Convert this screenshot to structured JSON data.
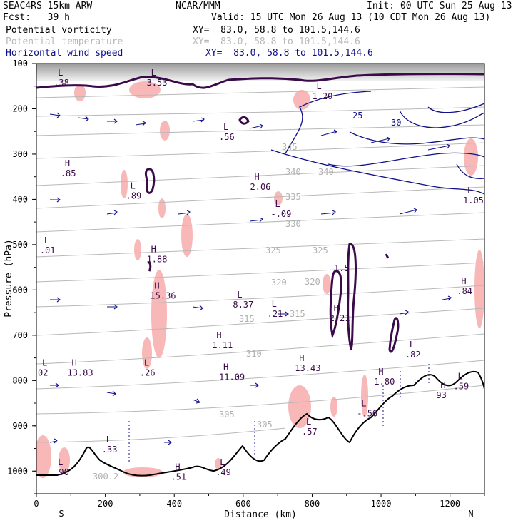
{
  "header": {
    "run_name": "SEAC4RS 15km ARW",
    "forecast": "Fcst:   39 h",
    "org": "NCAR/MMM",
    "init": "Init: 00 UTC Sun 25 Aug 13",
    "valid": "Valid: 15 UTC Mon 26 Aug 13 (10 CDT Mon 26 Aug 13)"
  },
  "legend": [
    {
      "label": "Potential vorticity",
      "xy": "XY=  83.0, 58.8 to 101.5,144.6",
      "color": "#3a0a4a"
    },
    {
      "label": "Potential temperature",
      "xy": "XY=  83.0, 58.8 to 101.5,144.6",
      "color": "#b8b8b8"
    },
    {
      "label": "Horizontal wind speed",
      "xy": "XY=  83.0, 58.8 to 101.5,144.6",
      "color": "#10108a"
    }
  ],
  "chart_data": {
    "type": "line",
    "xlabel": "Distance (km)",
    "ylabel": "Pressure (hPa)",
    "xlim": [
      0,
      1300
    ],
    "ylim": [
      1050,
      100
    ],
    "x_ticks": [
      "0",
      "200",
      "400",
      "600",
      "800",
      "1000",
      "1200"
    ],
    "y_ticks": [
      "100",
      "200",
      "300",
      "400",
      "500",
      "600",
      "700",
      "800",
      "900",
      "1000"
    ],
    "x_end_labels": {
      "left": "S",
      "right": "N"
    },
    "series": [
      {
        "name": "Potential temperature",
        "color": "#b8b8b8",
        "contour_labels": [
          "300.2",
          "305",
          "305",
          "310",
          "315",
          "315",
          "320",
          "320",
          "325",
          "325",
          "330",
          "335",
          "340",
          "340",
          "345"
        ]
      },
      {
        "name": "Potential vorticity",
        "color": "#3a0a4a",
        "contour_labels": [
          "1.5"
        ]
      },
      {
        "name": "Horizontal wind speed",
        "color": "#10108a",
        "contour_labels": [
          "25",
          "30"
        ]
      }
    ],
    "extrema_labels": [
      {
        "kind": "L",
        "value": ".38",
        "x": 50,
        "p": 130
      },
      {
        "kind": "L",
        "value": "3.53",
        "x": 320,
        "p": 130
      },
      {
        "kind": "L",
        "value": "1.20",
        "x": 800,
        "p": 160
      },
      {
        "kind": "L",
        "value": ".56",
        "x": 530,
        "p": 250
      },
      {
        "kind": "H",
        "value": ".85",
        "x": 70,
        "p": 330
      },
      {
        "kind": "L",
        "value": ".89",
        "x": 260,
        "p": 380
      },
      {
        "kind": "H",
        "value": "2.06",
        "x": 620,
        "p": 360
      },
      {
        "kind": "L",
        "value": "-.09",
        "x": 680,
        "p": 420
      },
      {
        "kind": "L",
        "value": "1.05",
        "x": 1260,
        "p": 390
      },
      {
        "kind": "L",
        "value": ".01",
        "x": 10,
        "p": 500
      },
      {
        "kind": "H",
        "value": "1.88",
        "x": 320,
        "p": 520
      },
      {
        "kind": "H",
        "value": "15.36",
        "x": 330,
        "p": 600
      },
      {
        "kind": "L",
        "value": "8.37",
        "x": 570,
        "p": 620
      },
      {
        "kind": "L",
        "value": ".21",
        "x": 670,
        "p": 640
      },
      {
        "kind": "H",
        "value": "2.21",
        "x": 850,
        "p": 650
      },
      {
        "kind": "H",
        "value": ".84",
        "x": 1220,
        "p": 590
      },
      {
        "kind": "H",
        "value": "1.11",
        "x": 510,
        "p": 710
      },
      {
        "kind": "L",
        "value": ".26",
        "x": 300,
        "p": 770
      },
      {
        "kind": "H",
        "value": "13.83",
        "x": 90,
        "p": 770
      },
      {
        "kind": "H",
        "value": "11.09",
        "x": 530,
        "p": 780
      },
      {
        "kind": "H",
        "value": "13.43",
        "x": 750,
        "p": 760
      },
      {
        "kind": "L",
        "value": ".82",
        "x": 1070,
        "p": 730
      },
      {
        "kind": "L",
        "value": "02",
        "x": 0,
        "p": 770
      },
      {
        "kind": "H",
        "value": "1.80",
        "x": 980,
        "p": 790
      },
      {
        "kind": "L",
        "value": ".59",
        "x": 1210,
        "p": 800
      },
      {
        "kind": "H",
        "value": "93",
        "x": 1160,
        "p": 820
      },
      {
        "kind": "L",
        "value": "-.56",
        "x": 930,
        "p": 860
      },
      {
        "kind": "L",
        "value": ".57",
        "x": 770,
        "p": 900
      },
      {
        "kind": "L",
        "value": ".33",
        "x": 190,
        "p": 940
      },
      {
        "kind": "L",
        "value": ".90",
        "x": 50,
        "p": 990
      },
      {
        "kind": "H",
        "value": ".51",
        "x": 390,
        "p": 1000
      },
      {
        "kind": "L",
        "value": ".49",
        "x": 520,
        "p": 990
      }
    ]
  }
}
